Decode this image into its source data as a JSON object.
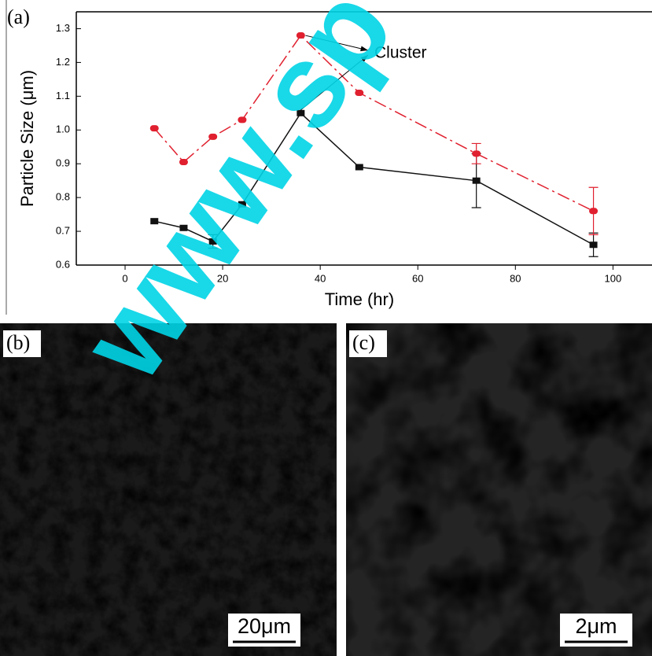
{
  "chart_data": {
    "type": "line",
    "panel_label": "(a)",
    "x_label": "Time (hr)",
    "y_label": "Particle Size (μm)",
    "x": [
      6,
      12,
      18,
      24,
      36,
      48,
      72,
      96
    ],
    "series": [
      {
        "color": "#111111",
        "marker": "square",
        "dashed": false,
        "values": [
          0.73,
          0.71,
          0.67,
          0.78,
          1.05,
          0.89,
          0.85,
          0.66
        ],
        "errors": [
          null,
          null,
          0.02,
          null,
          null,
          null,
          0.08,
          0.035
        ]
      },
      {
        "color": "#e0202f",
        "marker": "circle",
        "dashed": true,
        "values": [
          1.005,
          0.905,
          0.98,
          1.03,
          1.28,
          1.11,
          0.93,
          0.76
        ],
        "errors": [
          null,
          null,
          null,
          null,
          null,
          null,
          0.03,
          0.07
        ]
      }
    ],
    "annotation": "Cluster",
    "xlim": [
      -10,
      108
    ],
    "ylim": [
      0.6,
      1.35
    ],
    "xticks": [
      0,
      20,
      40,
      60,
      80,
      100
    ],
    "yticks": [
      0.6,
      0.7,
      0.8,
      0.9,
      {
        "value": 1,
        "label": "1.0"
      },
      1.1,
      1.2,
      1.3
    ]
  },
  "watermark": "www.sp",
  "panels": [
    {
      "label": "(b)",
      "scale_bar": "20μm"
    },
    {
      "label": "(c)",
      "scale_bar": "2μm"
    }
  ]
}
